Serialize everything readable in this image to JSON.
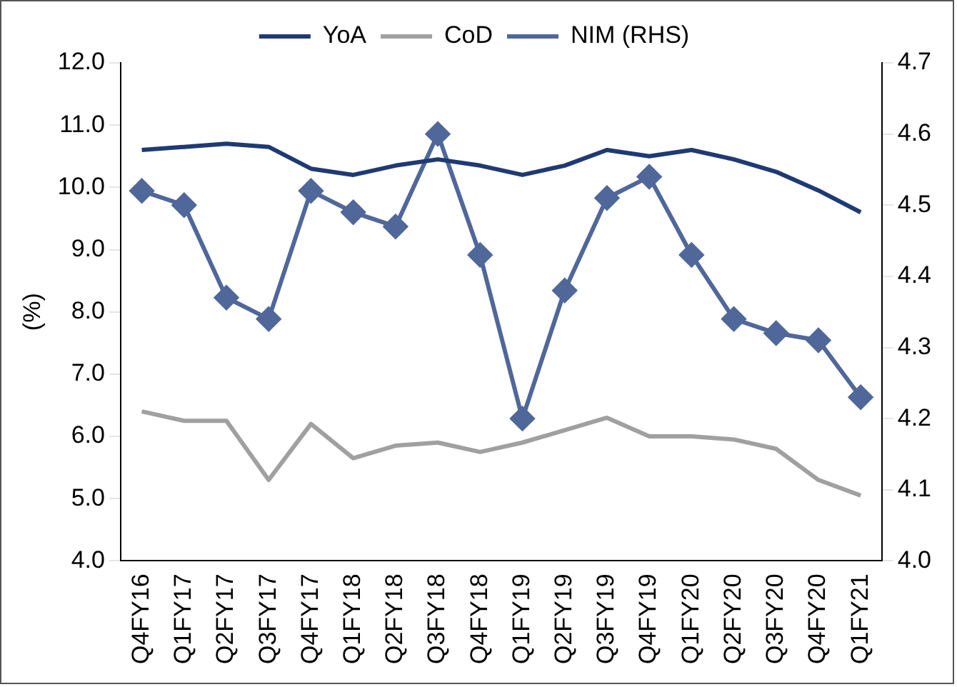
{
  "chart_data": {
    "type": "line",
    "ylabel": "(%)",
    "categories": [
      "Q4FY16",
      "Q1FY17",
      "Q2FY17",
      "Q3FY17",
      "Q4FY17",
      "Q1FY18",
      "Q2FY18",
      "Q3FY18",
      "Q4FY18",
      "Q1FY19",
      "Q2FY19",
      "Q3FY19",
      "Q4FY19",
      "Q1FY20",
      "Q2FY20",
      "Q3FY20",
      "Q4FY20",
      "Q1FY21"
    ],
    "series": [
      {
        "name": "YoA",
        "color": "#1f3a73",
        "marker": "none",
        "values": [
          10.6,
          10.65,
          10.7,
          10.65,
          10.3,
          10.2,
          10.35,
          10.45,
          10.35,
          10.2,
          10.35,
          10.6,
          10.5,
          10.6,
          10.45,
          10.25,
          9.95,
          9.6
        ]
      },
      {
        "name": "CoD",
        "color": "#a0a0a0",
        "marker": "none",
        "values": [
          6.4,
          6.25,
          6.25,
          5.3,
          6.2,
          5.65,
          5.85,
          5.9,
          5.75,
          5.9,
          6.1,
          6.3,
          6.0,
          6.0,
          5.95,
          5.8,
          5.3,
          5.05
        ]
      },
      {
        "name": "NIM (RHS)",
        "color": "#50679a",
        "marker": "diamond",
        "axis": "y2",
        "values": [
          4.52,
          4.5,
          4.37,
          4.34,
          4.52,
          4.49,
          4.47,
          4.6,
          4.43,
          4.2,
          4.38,
          4.51,
          4.54,
          4.43,
          4.34,
          4.32,
          4.31,
          4.23
        ]
      }
    ],
    "ylim": [
      4,
      12
    ],
    "yticks": [
      {
        "value": 4,
        "label": "4.0"
      },
      {
        "value": 5,
        "label": "5.0"
      },
      {
        "value": 6,
        "label": "6.0"
      },
      {
        "value": 7,
        "label": "7.0"
      },
      {
        "value": 8,
        "label": "8.0"
      },
      {
        "value": 9,
        "label": "9.0"
      },
      {
        "value": 10,
        "label": "10.0"
      },
      {
        "value": 11,
        "label": "11.0"
      },
      {
        "value": 12,
        "label": "12.0"
      }
    ],
    "y2lim": [
      4,
      4.7
    ],
    "y2ticks": [
      {
        "value": 4,
        "label": "4.0"
      },
      4.1,
      4.2,
      4.3,
      4.4,
      4.5,
      4.6,
      4.7
    ],
    "grid": false,
    "legend": "top"
  }
}
